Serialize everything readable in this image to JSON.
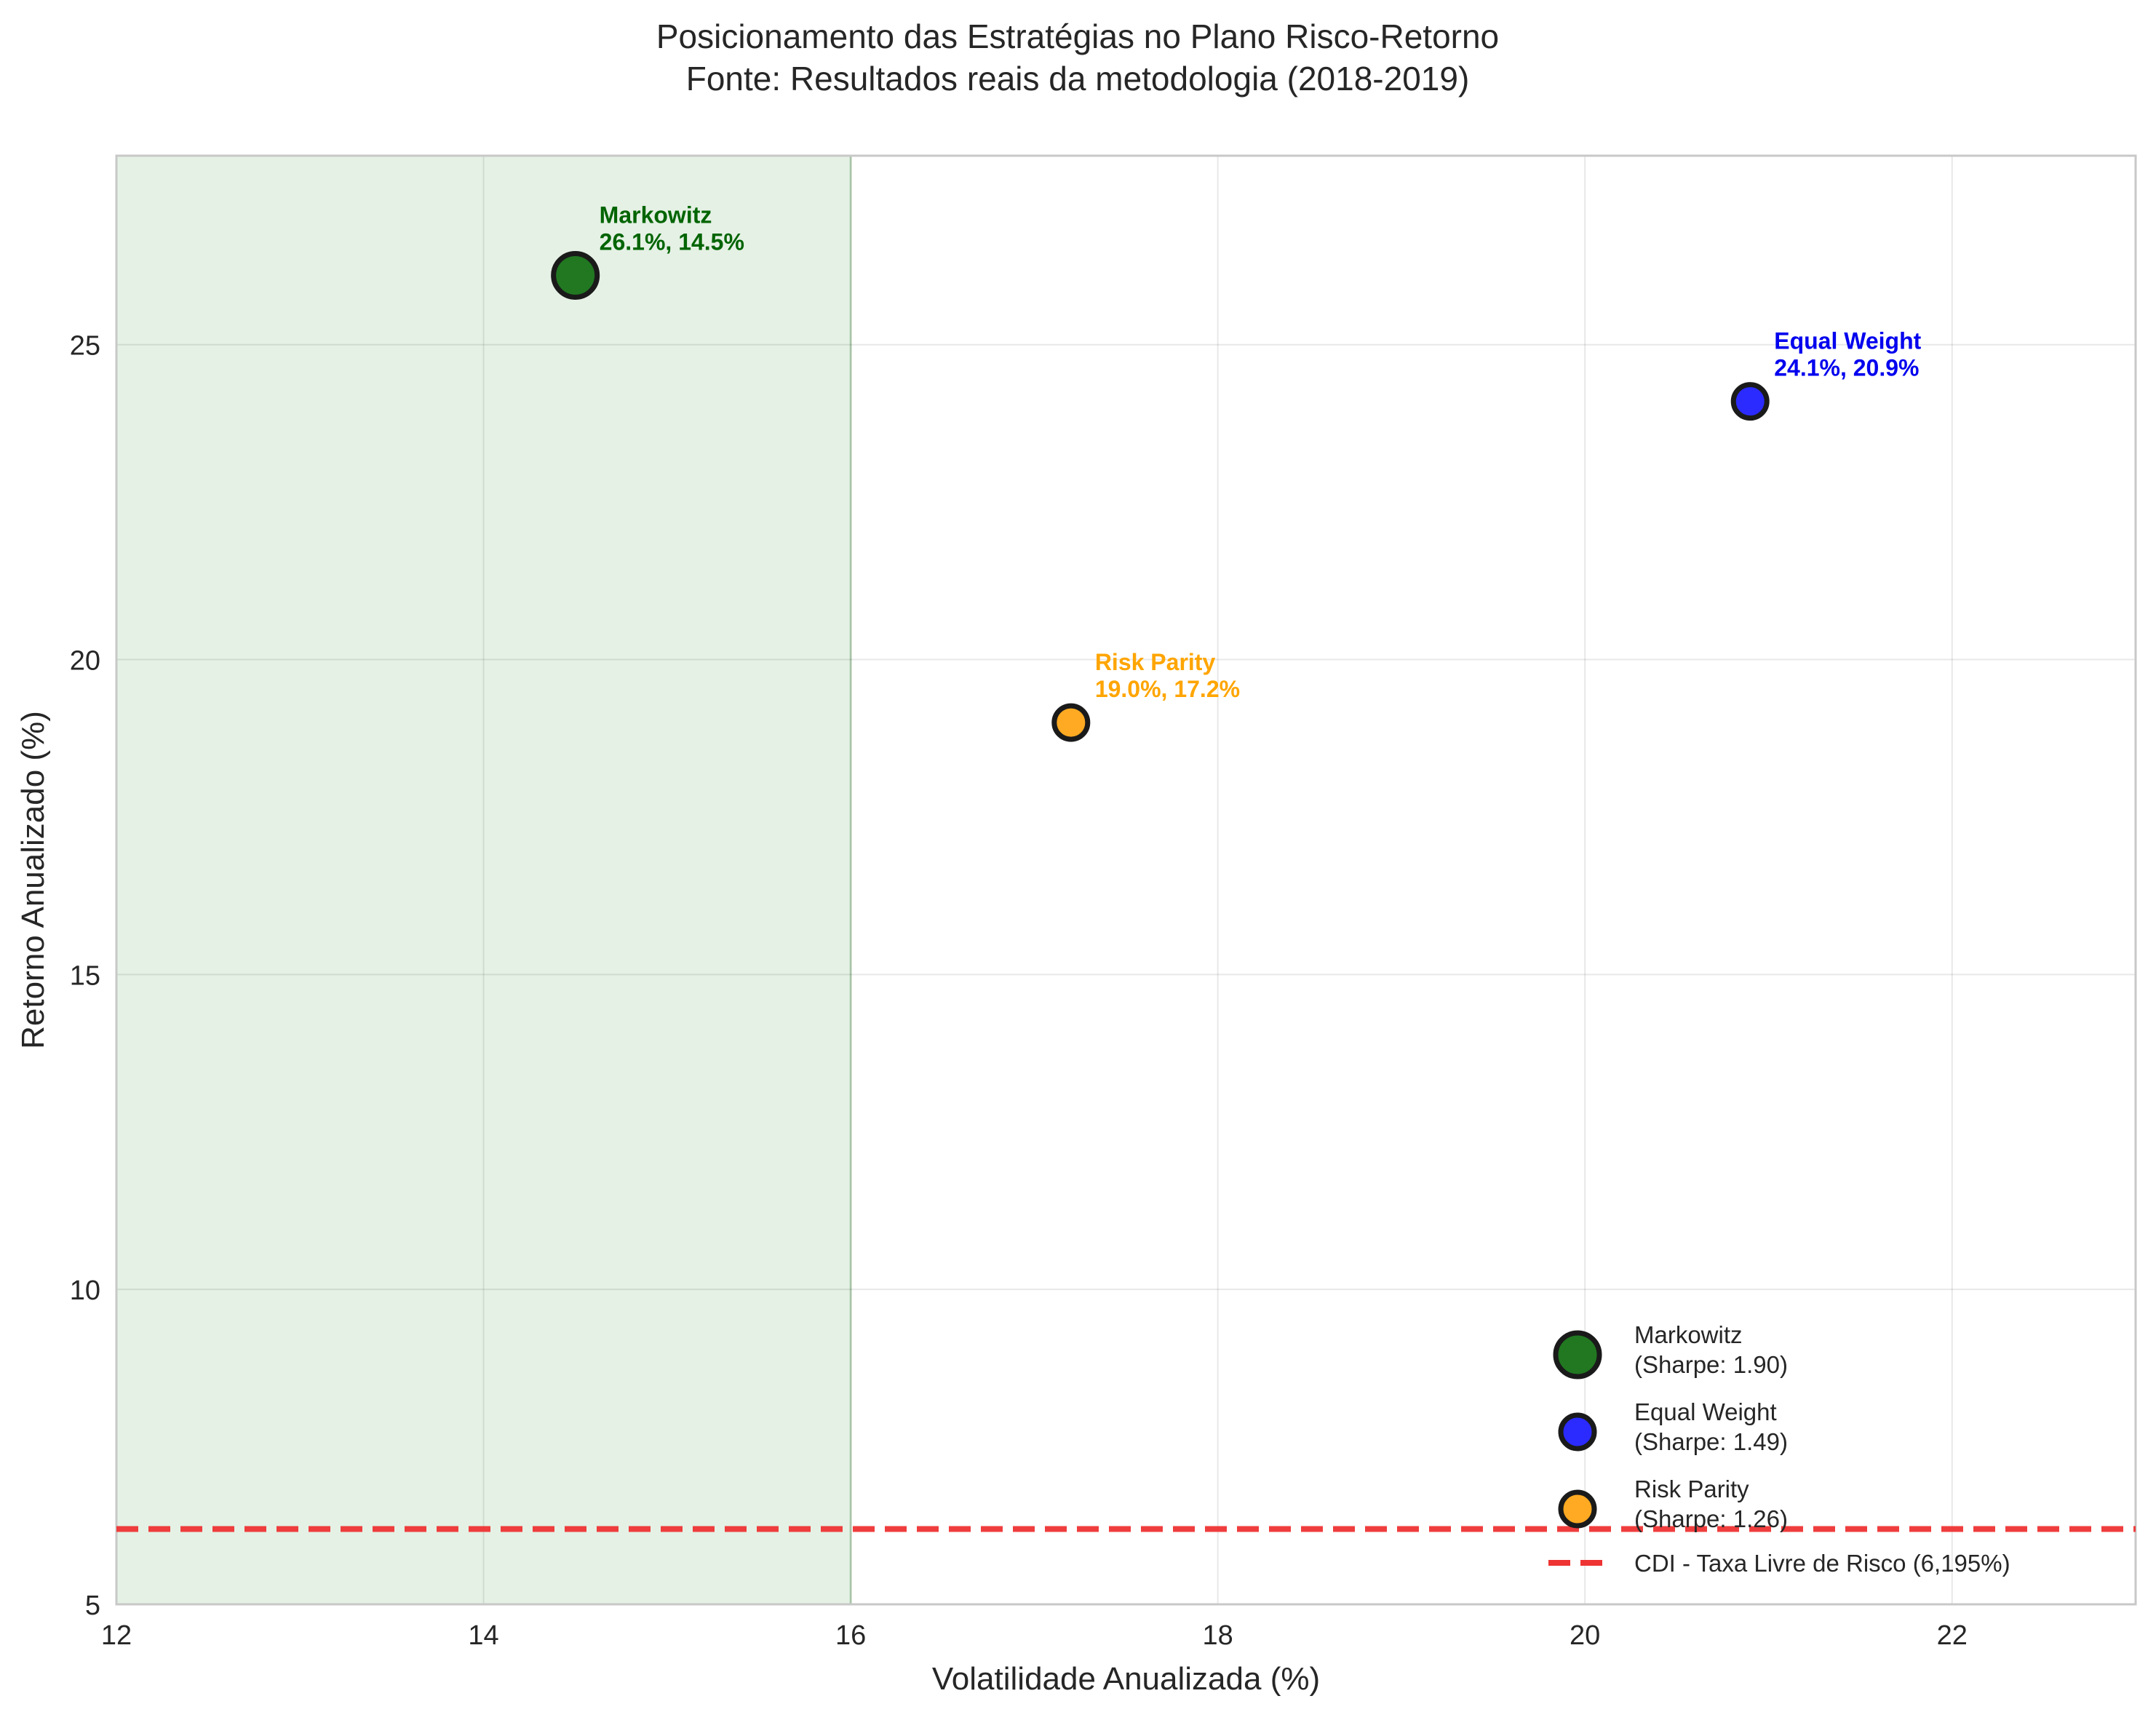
{
  "chart_data": {
    "type": "scatter",
    "title": "Posicionamento das Estratégias no Plano Risco-Retorno\nFonte: Resultados reais da metodologia (2018-2019)",
    "xlabel": "Volatilidade Anualizada (%)",
    "ylabel": "Retorno Anualizado (%)",
    "xlim": [
      12,
      23
    ],
    "ylim": [
      5,
      28
    ],
    "xticks": [
      12,
      14,
      16,
      18,
      20,
      22
    ],
    "yticks": [
      5,
      10,
      15,
      20,
      25
    ],
    "grid": true,
    "legend_position": "bottom-right",
    "shaded_region": {
      "x_from": 12,
      "x_to": 16,
      "color": "#e5f1e5",
      "edge_color": "#b9d6b9"
    },
    "series": [
      {
        "name": "Markowitz",
        "legend_label": "Markowitz\n(Sharpe: 1.90)",
        "x": 14.5,
        "y": 26.1,
        "color": "#217821",
        "label_color": "#006400",
        "annotation": "Markowitz\n26.1%, 14.5%",
        "size": "large"
      },
      {
        "name": "Equal Weight",
        "legend_label": "Equal Weight\n(Sharpe: 1.49)",
        "x": 20.9,
        "y": 24.1,
        "color": "#2b2bff",
        "label_color": "#0000ee",
        "annotation": "Equal Weight\n24.1%, 20.9%",
        "size": "medium"
      },
      {
        "name": "Risk Parity",
        "legend_label": "Risk Parity\n(Sharpe: 1.26)",
        "x": 17.2,
        "y": 19.0,
        "color": "#ffaa22",
        "label_color": "#ffa500",
        "annotation": "Risk Parity\n19.0%, 17.2%",
        "size": "medium"
      }
    ],
    "reference_line": {
      "y": 6.195,
      "label": "CDI - Taxa Livre de Risco (6,195%)",
      "color": "#ee3333",
      "style": "dashed"
    }
  }
}
